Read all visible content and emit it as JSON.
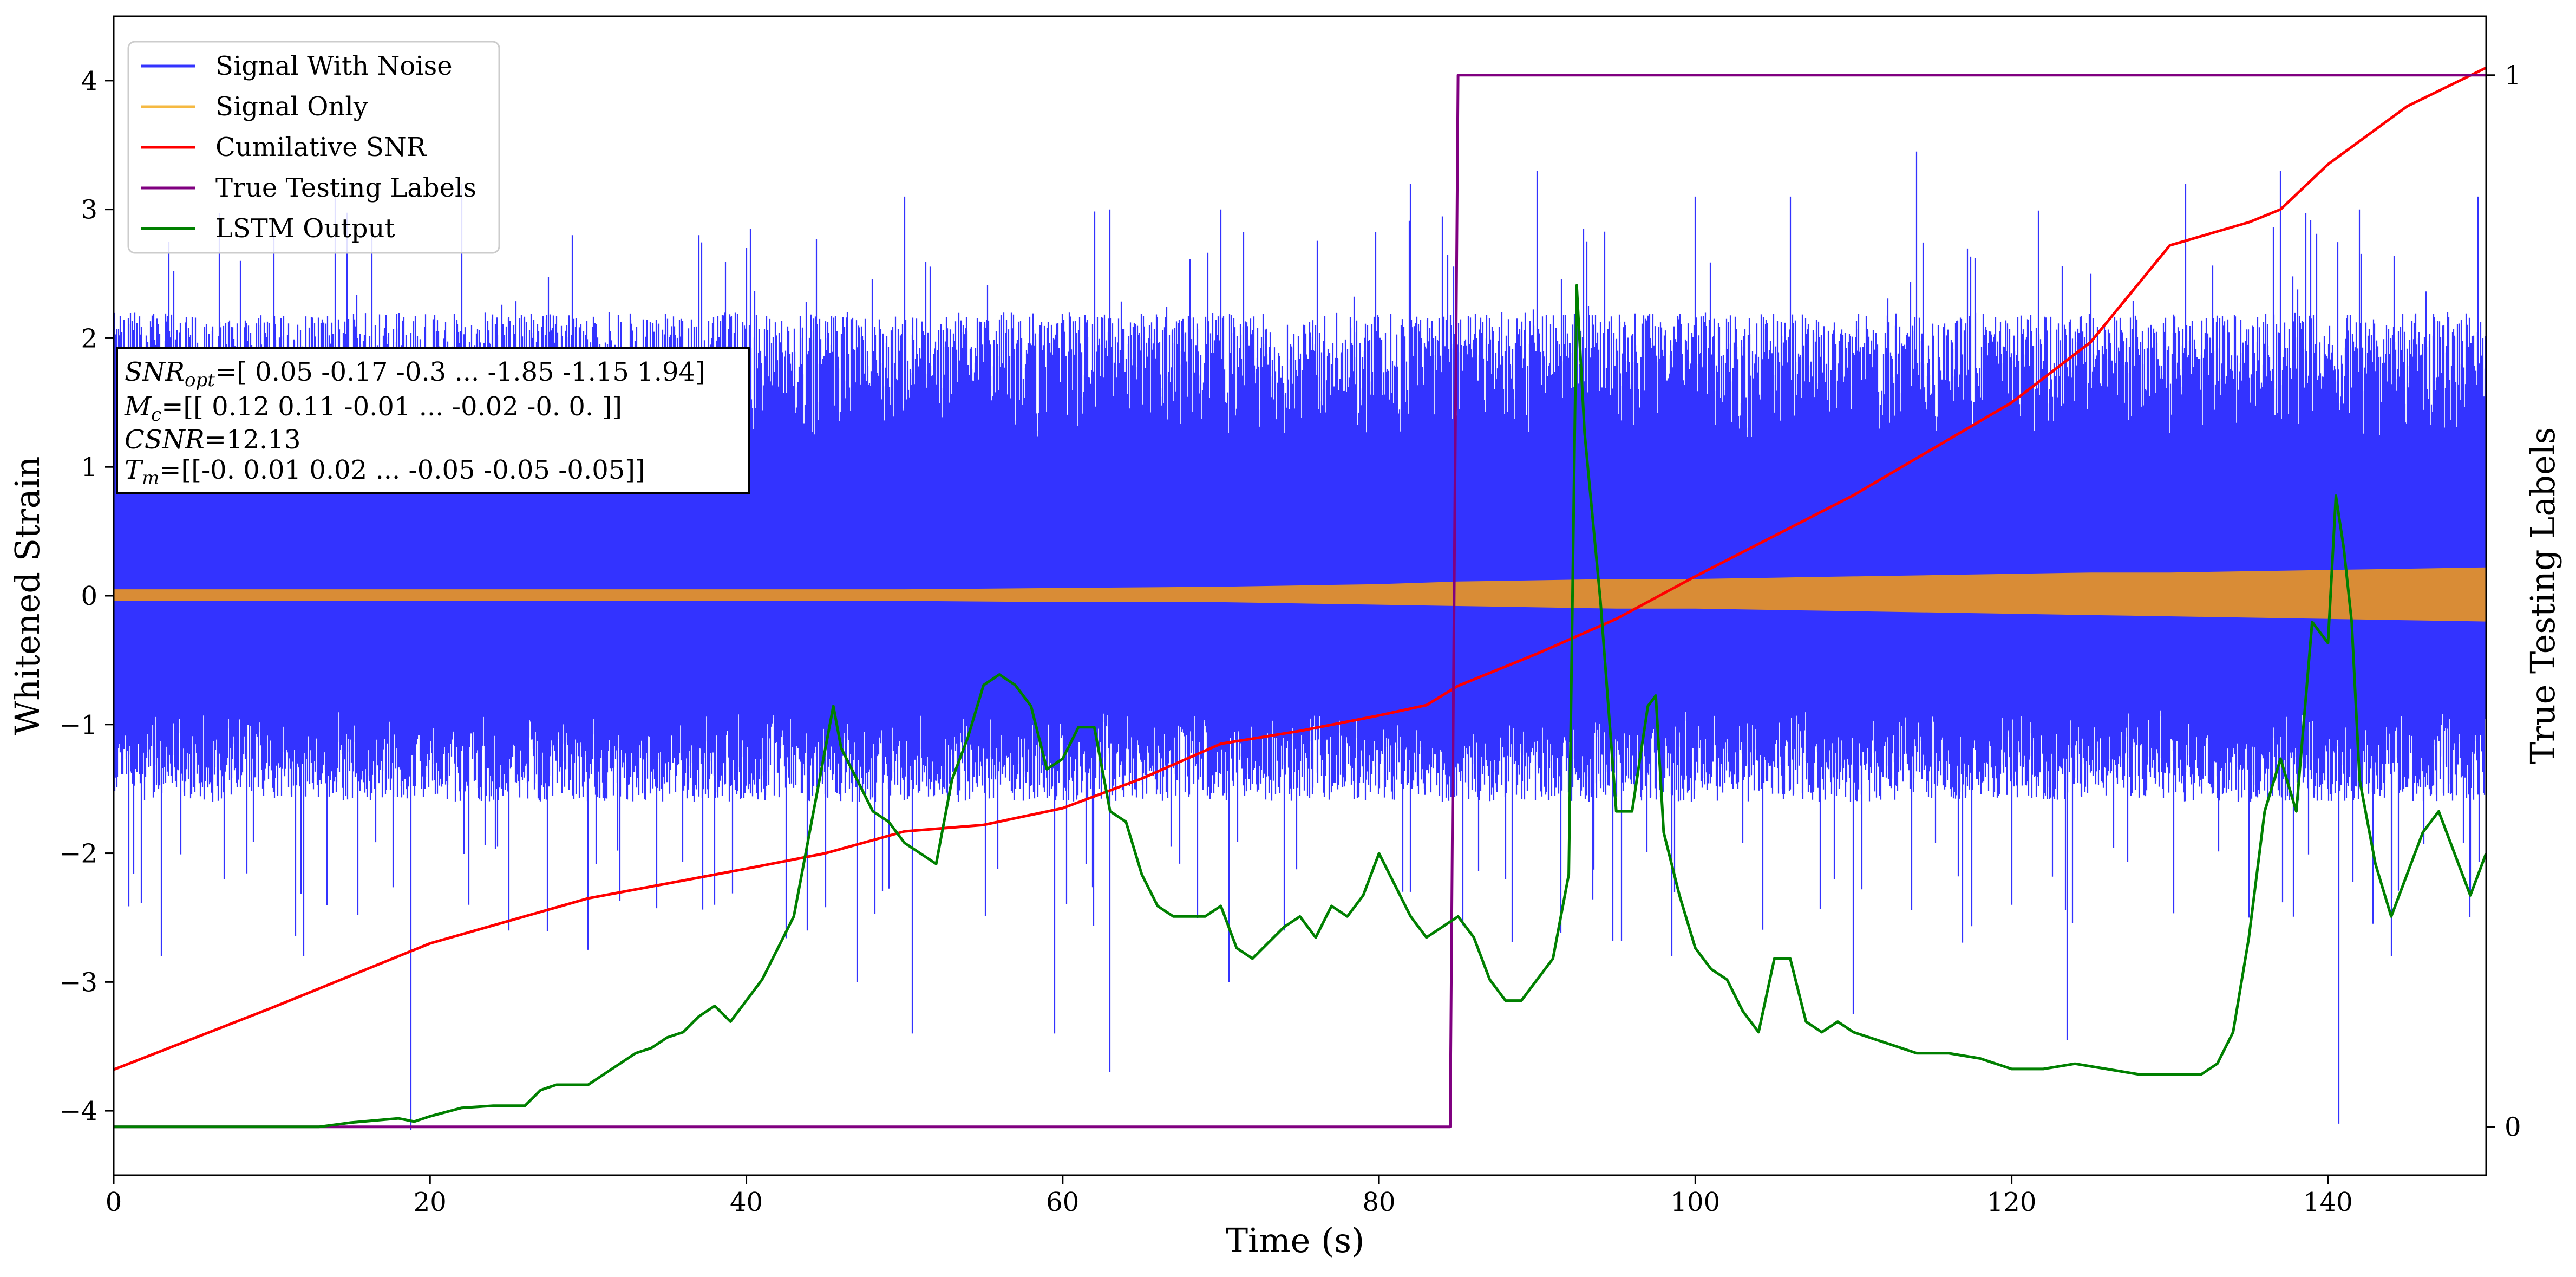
{
  "chart_data": {
    "type": "line",
    "title": "",
    "xlabel": "Time (s)",
    "ylabel": "Whitened Strain",
    "y2label": "True Testing Labels",
    "xlim": [
      0,
      150
    ],
    "ylim": [
      -4.5,
      4.5
    ],
    "y2lim": [
      -0.046,
      1.056
    ],
    "x_ticks": [
      0,
      20,
      40,
      60,
      80,
      100,
      120,
      140
    ],
    "y_ticks": [
      -4,
      -3,
      -2,
      -1,
      0,
      1,
      2,
      3,
      4
    ],
    "y2_ticks": [
      0,
      1
    ],
    "legend_position": "top-left",
    "grid": false,
    "series": [
      {
        "name": "Signal With Noise",
        "color": "#3333ff",
        "axis": "left",
        "kind": "noise-band",
        "x_range": [
          0,
          150
        ],
        "typical_range": [
          -1.6,
          2.2
        ],
        "peak_max": [
          [
            3.5,
            2.75
          ],
          [
            8.0,
            2.6
          ],
          [
            14.0,
            3.1
          ],
          [
            22.0,
            3.2
          ],
          [
            29.0,
            2.8
          ],
          [
            37.0,
            2.8
          ],
          [
            40.0,
            2.7
          ],
          [
            50.0,
            3.1
          ],
          [
            63.0,
            3.0
          ],
          [
            70.0,
            3.0
          ],
          [
            82.0,
            3.2
          ],
          [
            90.0,
            3.3
          ],
          [
            100.0,
            3.1
          ],
          [
            106.0,
            3.1
          ],
          [
            114.0,
            3.45
          ],
          [
            125.0,
            2.5
          ],
          [
            131.0,
            3.2
          ],
          [
            137.0,
            3.3
          ],
          [
            142.0,
            3.0
          ],
          [
            149.5,
            3.1
          ]
        ],
        "peak_min": [
          [
            3.0,
            -2.8
          ],
          [
            7.0,
            -2.2
          ],
          [
            12.0,
            -2.8
          ],
          [
            18.8,
            -4.15
          ],
          [
            25.0,
            -2.6
          ],
          [
            30.0,
            -2.75
          ],
          [
            38.0,
            -2.4
          ],
          [
            47.0,
            -3.0
          ],
          [
            50.5,
            -3.4
          ],
          [
            59.5,
            -3.4
          ],
          [
            63.0,
            -3.7
          ],
          [
            70.5,
            -3.0
          ],
          [
            74.0,
            -2.6
          ],
          [
            82.0,
            -2.3
          ],
          [
            88.0,
            -2.2
          ],
          [
            98.5,
            -2.8
          ],
          [
            110.0,
            -3.25
          ],
          [
            120.0,
            -2.4
          ],
          [
            123.5,
            -3.45
          ],
          [
            135.0,
            -2.5
          ],
          [
            140.7,
            -4.1
          ],
          [
            144.0,
            -2.8
          ],
          [
            149.0,
            -2.3
          ]
        ]
      },
      {
        "name": "Signal Only",
        "color": "#f5b942",
        "axis": "left",
        "kind": "envelope",
        "x": [
          0,
          20,
          40,
          50,
          60,
          70,
          75,
          80,
          85,
          90,
          95,
          100,
          105,
          110,
          115,
          120,
          125,
          130,
          135,
          140,
          145,
          150
        ],
        "upper": [
          0.05,
          0.05,
          0.05,
          0.05,
          0.06,
          0.07,
          0.08,
          0.09,
          0.11,
          0.12,
          0.13,
          0.13,
          0.14,
          0.15,
          0.16,
          0.17,
          0.18,
          0.18,
          0.19,
          0.2,
          0.21,
          0.22
        ],
        "lower": [
          -0.04,
          -0.04,
          -0.04,
          -0.04,
          -0.05,
          -0.05,
          -0.06,
          -0.07,
          -0.08,
          -0.09,
          -0.1,
          -0.1,
          -0.11,
          -0.12,
          -0.13,
          -0.14,
          -0.15,
          -0.16,
          -0.17,
          -0.18,
          -0.19,
          -0.2
        ]
      },
      {
        "name": "Cumilative SNR",
        "color": "#ff0000",
        "axis": "left",
        "x": [
          0,
          10,
          20,
          30,
          40,
          45,
          50,
          55,
          60,
          65,
          70,
          75,
          80,
          83,
          85,
          90,
          95,
          100,
          110,
          120,
          125,
          130,
          135,
          137,
          140,
          145,
          150
        ],
        "y": [
          -3.68,
          -3.2,
          -2.7,
          -2.35,
          -2.12,
          -2.0,
          -1.83,
          -1.78,
          -1.65,
          -1.42,
          -1.15,
          -1.05,
          -0.93,
          -0.85,
          -0.7,
          -0.45,
          -0.18,
          0.15,
          0.78,
          1.5,
          1.97,
          2.72,
          2.9,
          3.0,
          3.35,
          3.8,
          4.1
        ]
      },
      {
        "name": "True Testing Labels",
        "color": "#800080",
        "axis": "right",
        "x": [
          0,
          84.5,
          85.0,
          150
        ],
        "y": [
          0,
          0,
          1,
          1
        ]
      },
      {
        "name": "LSTM Output",
        "color": "#008000",
        "axis": "right",
        "x": [
          0,
          13,
          15,
          18,
          19,
          20,
          22,
          24,
          26,
          27,
          28,
          30,
          31,
          32,
          33,
          34,
          35,
          36,
          37,
          38,
          39,
          40,
          41,
          42,
          43,
          44,
          45,
          45.5,
          46,
          47,
          48,
          49,
          50,
          51,
          52,
          53,
          54,
          55,
          56,
          57,
          58,
          59,
          60,
          61,
          62,
          63,
          64,
          65,
          66,
          67,
          68,
          69,
          70,
          71,
          72,
          73,
          74,
          75,
          76,
          77,
          78,
          79,
          80,
          81,
          82,
          83,
          84,
          85,
          86,
          87,
          88,
          89,
          90,
          91,
          92,
          92.5,
          93,
          94,
          95,
          96,
          97,
          97.5,
          98,
          99,
          100,
          101,
          102,
          103,
          104,
          105,
          106,
          107,
          108,
          109,
          110,
          112,
          114,
          116,
          118,
          120,
          122,
          124,
          126,
          128,
          130,
          132,
          133,
          134,
          135,
          136,
          137,
          138,
          139,
          140,
          140.5,
          141,
          141.5,
          142,
          143,
          144,
          145,
          146,
          147,
          148,
          149,
          150
        ],
        "y": [
          0,
          0,
          0.004,
          0.008,
          0.005,
          0.01,
          0.018,
          0.02,
          0.02,
          0.035,
          0.04,
          0.04,
          0.05,
          0.06,
          0.07,
          0.075,
          0.085,
          0.09,
          0.105,
          0.115,
          0.1,
          0.12,
          0.14,
          0.17,
          0.2,
          0.28,
          0.36,
          0.4,
          0.36,
          0.33,
          0.3,
          0.29,
          0.27,
          0.26,
          0.25,
          0.33,
          0.37,
          0.42,
          0.43,
          0.42,
          0.4,
          0.34,
          0.35,
          0.38,
          0.38,
          0.3,
          0.29,
          0.24,
          0.21,
          0.2,
          0.2,
          0.2,
          0.21,
          0.17,
          0.16,
          0.175,
          0.19,
          0.2,
          0.18,
          0.21,
          0.2,
          0.22,
          0.26,
          0.23,
          0.2,
          0.18,
          0.19,
          0.2,
          0.18,
          0.14,
          0.12,
          0.12,
          0.14,
          0.16,
          0.24,
          0.8,
          0.66,
          0.5,
          0.3,
          0.3,
          0.4,
          0.41,
          0.28,
          0.22,
          0.17,
          0.15,
          0.14,
          0.11,
          0.09,
          0.16,
          0.16,
          0.1,
          0.09,
          0.1,
          0.09,
          0.08,
          0.07,
          0.07,
          0.065,
          0.055,
          0.055,
          0.06,
          0.055,
          0.05,
          0.05,
          0.05,
          0.06,
          0.09,
          0.18,
          0.3,
          0.35,
          0.3,
          0.48,
          0.46,
          0.6,
          0.55,
          0.48,
          0.33,
          0.25,
          0.2,
          0.24,
          0.28,
          0.3,
          0.26,
          0.22,
          0.26
        ]
      }
    ]
  },
  "annotation": {
    "line1_symbol": "SNR",
    "line1_sub": "opt",
    "line1_value": "=[ 0.05 -0.17 -0.3  ... -1.85 -1.15  1.94]",
    "line2_symbol": "M",
    "line2_sub": "c",
    "line2_value": "=[[ 0.12  0.11 -0.01 ... -0.02 -0.    0.  ]]",
    "line3_symbol": "CSNR",
    "line3_value": "=12.13",
    "line4_symbol": "T",
    "line4_sub": "m",
    "line4_value": "=[[-0.    0.01  0.02 ... -0.05 -0.05 -0.05]]"
  }
}
